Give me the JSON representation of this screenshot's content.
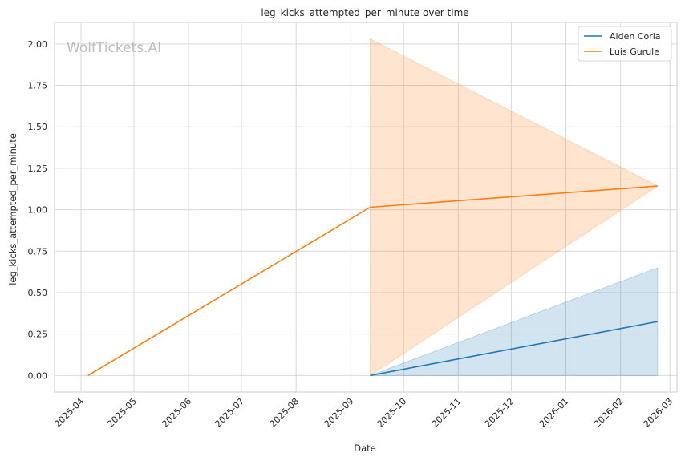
{
  "watermark": "WolfTickets.AI",
  "chart_data": {
    "type": "line",
    "title": "leg_kicks_attempted_per_minute over time",
    "xlabel": "Date",
    "ylabel": "leg_kicks_attempted_per_minute",
    "x_axis": {
      "type": "date",
      "range": [
        "2025-03-17",
        "2026-03-05"
      ],
      "ticks": [
        "2025-04-01",
        "2025-05-01",
        "2025-06-01",
        "2025-07-01",
        "2025-08-01",
        "2025-09-01",
        "2025-10-01",
        "2025-11-01",
        "2025-12-01",
        "2026-01-01",
        "2026-02-01",
        "2026-03-01"
      ],
      "tick_labels": [
        "2025-04",
        "2025-05",
        "2025-06",
        "2025-07",
        "2025-08",
        "2025-09",
        "2025-10",
        "2025-11",
        "2025-12",
        "2026-01",
        "2026-02",
        "2026-03"
      ]
    },
    "y_axis": {
      "range": [
        -0.1,
        2.13
      ],
      "ticks": [
        0.0,
        0.25,
        0.5,
        0.75,
        1.0,
        1.25,
        1.5,
        1.75,
        2.0
      ],
      "tick_labels": [
        "0.00",
        "0.25",
        "0.50",
        "0.75",
        "1.00",
        "1.25",
        "1.50",
        "1.75",
        "2.00"
      ]
    },
    "grid": true,
    "legend": "top-right",
    "series": [
      {
        "name": "Alden Coria",
        "color": "#1f77b4",
        "points": [
          {
            "x": "2025-09-12",
            "y": 0.0,
            "lower": 0.0,
            "upper": 0.0
          },
          {
            "x": "2026-02-22",
            "y": 0.325,
            "lower": 0.0,
            "upper": 0.65
          }
        ]
      },
      {
        "name": "Luis Gurule",
        "color": "#ff7f0e",
        "points": [
          {
            "x": "2025-04-05",
            "y": 0.0
          },
          {
            "x": "2025-09-12",
            "y": 1.015,
            "lower": 0.0,
            "upper": 2.03
          },
          {
            "x": "2026-02-22",
            "y": 1.143,
            "lower": 1.143,
            "upper": 1.143
          }
        ]
      }
    ]
  }
}
